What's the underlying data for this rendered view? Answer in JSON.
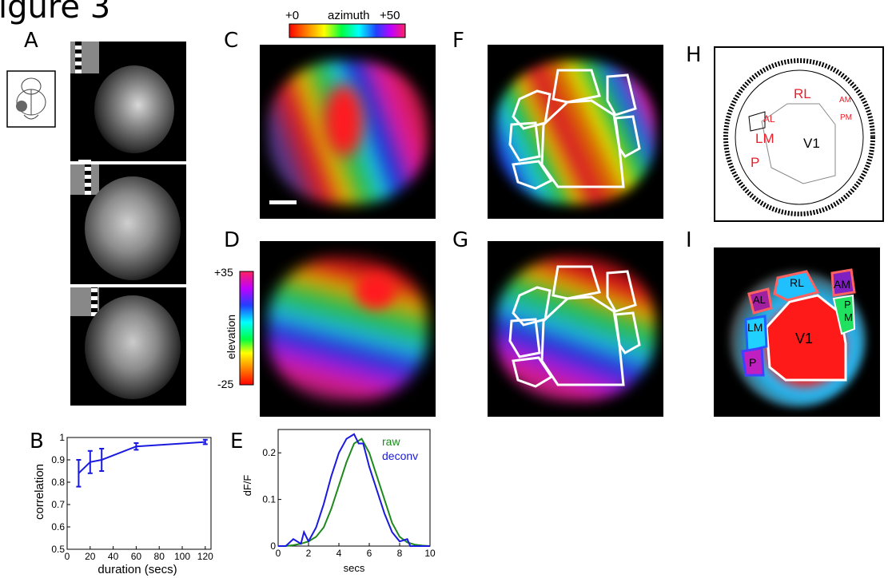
{
  "figure": {
    "title": "igure 3"
  },
  "panels": {
    "A": "A",
    "B": "B",
    "C": "C",
    "D": "D",
    "E": "E",
    "F": "F",
    "G": "G",
    "H": "H",
    "I": "I"
  },
  "azimuth_bar": {
    "min": "+0",
    "label": "azimuth",
    "max": "+50"
  },
  "elevation_bar": {
    "max": "+35",
    "label": "elevation",
    "min": "-25"
  },
  "areas_H": [
    "RL",
    "AM",
    "PM",
    "AL",
    "LM",
    "V1",
    "P"
  ],
  "areas_I": [
    "RL",
    "AM",
    "AL",
    "P",
    "M",
    "LM",
    "V1",
    "P"
  ],
  "colors": {
    "accent_red": "#e8202a",
    "line_blue": "#1a1adf",
    "line_green": "#1e8a1e"
  },
  "chart_data": [
    {
      "type": "line",
      "panel": "B",
      "xlabel": "duration (secs)",
      "ylabel": "correlation",
      "xlim": [
        0,
        125
      ],
      "ylim": [
        0.5,
        1
      ],
      "xticks": [
        "0",
        "20",
        "40",
        "60",
        "80",
        "100",
        "120"
      ],
      "yticks": [
        "0.5",
        "0.6",
        "0.7",
        "0.8",
        "0.9",
        "1"
      ],
      "x": [
        10,
        20,
        30,
        60,
        120
      ],
      "y": [
        0.84,
        0.89,
        0.9,
        0.96,
        0.98
      ],
      "err": [
        0.06,
        0.05,
        0.05,
        0.015,
        0.01
      ]
    },
    {
      "type": "line",
      "panel": "E",
      "xlabel": "secs",
      "ylabel": "dF/F",
      "xlim": [
        0,
        10
      ],
      "ylim": [
        0,
        0.25
      ],
      "xticks": [
        "0",
        "2",
        "4",
        "6",
        "8",
        "10"
      ],
      "yticks": [
        "0",
        "0.1",
        "0.2"
      ],
      "legend": [
        "raw",
        "deconv"
      ],
      "series": [
        {
          "name": "raw",
          "color": "#1e8a1e",
          "x": [
            0,
            0.5,
            1,
            1.5,
            2,
            2.5,
            3,
            3.5,
            4,
            4.5,
            5,
            5.5,
            6,
            6.5,
            7,
            7.5,
            8,
            8.5,
            9,
            9.5,
            10
          ],
          "y": [
            0,
            0,
            0.002,
            0.005,
            0.01,
            0.02,
            0.04,
            0.08,
            0.13,
            0.18,
            0.22,
            0.23,
            0.2,
            0.15,
            0.1,
            0.05,
            0.02,
            0.008,
            0.003,
            0.001,
            0
          ]
        },
        {
          "name": "deconv",
          "color": "#1a1adf",
          "x": [
            0,
            0.5,
            1,
            1.5,
            1.7,
            2,
            2.5,
            3,
            3.5,
            4,
            4.5,
            5,
            5.3,
            5.6,
            6,
            6.5,
            7,
            7.5,
            8,
            8.5,
            8.7,
            9,
            9.5,
            10
          ],
          "y": [
            0,
            0,
            0.015,
            0.005,
            0.03,
            0.01,
            0.04,
            0.09,
            0.15,
            0.2,
            0.23,
            0.24,
            0.22,
            0.22,
            0.17,
            0.12,
            0.07,
            0.03,
            0.01,
            0.015,
            0,
            0,
            0,
            0
          ]
        }
      ]
    }
  ]
}
